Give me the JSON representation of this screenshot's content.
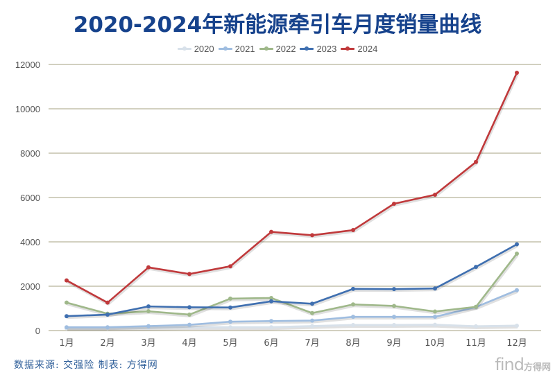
{
  "chart_data": {
    "type": "line",
    "title": "2020-2024年新能源牵引车月度销量曲线",
    "xlabel": "",
    "ylabel": "",
    "categories": [
      "1月",
      "2月",
      "3月",
      "4月",
      "5月",
      "6月",
      "7月",
      "8月",
      "9月",
      "10月",
      "11月",
      "12月"
    ],
    "ylim": [
      0,
      12000
    ],
    "yticks": [
      0,
      2000,
      4000,
      6000,
      8000,
      10000,
      12000
    ],
    "ytick_labels": [
      "0",
      "2000",
      "4000",
      "6000",
      "8000",
      "10000",
      "12000"
    ],
    "grid": true,
    "legend_position": "top-center",
    "series": [
      {
        "name": "2020",
        "color": "#d8e1ea",
        "values": [
          100,
          100,
          120,
          150,
          150,
          150,
          200,
          250,
          250,
          260,
          190,
          220
        ]
      },
      {
        "name": "2021",
        "color": "#9fbde0",
        "values": [
          150,
          150,
          200,
          260,
          400,
          430,
          450,
          620,
          620,
          620,
          1060,
          1820
        ]
      },
      {
        "name": "2022",
        "color": "#9fb88a",
        "values": [
          1260,
          760,
          870,
          720,
          1440,
          1470,
          790,
          1180,
          1110,
          860,
          1070,
          3470
        ]
      },
      {
        "name": "2023",
        "color": "#3f6fb0",
        "values": [
          650,
          720,
          1090,
          1050,
          1040,
          1320,
          1210,
          1880,
          1870,
          1900,
          2870,
          3890
        ]
      },
      {
        "name": "2024",
        "color": "#c0393b",
        "values": [
          2260,
          1260,
          2850,
          2550,
          2900,
          4450,
          4300,
          4530,
          5720,
          6125,
          7600,
          11625
        ]
      }
    ]
  },
  "footer": {
    "source": "数据来源: 交强险 制表: 方得网",
    "watermark_en": "find",
    "watermark_cn": "方得网"
  },
  "colors": {
    "title": "#16428c",
    "gridline": "#b8b39a",
    "source_text": "#2f5f9a"
  }
}
